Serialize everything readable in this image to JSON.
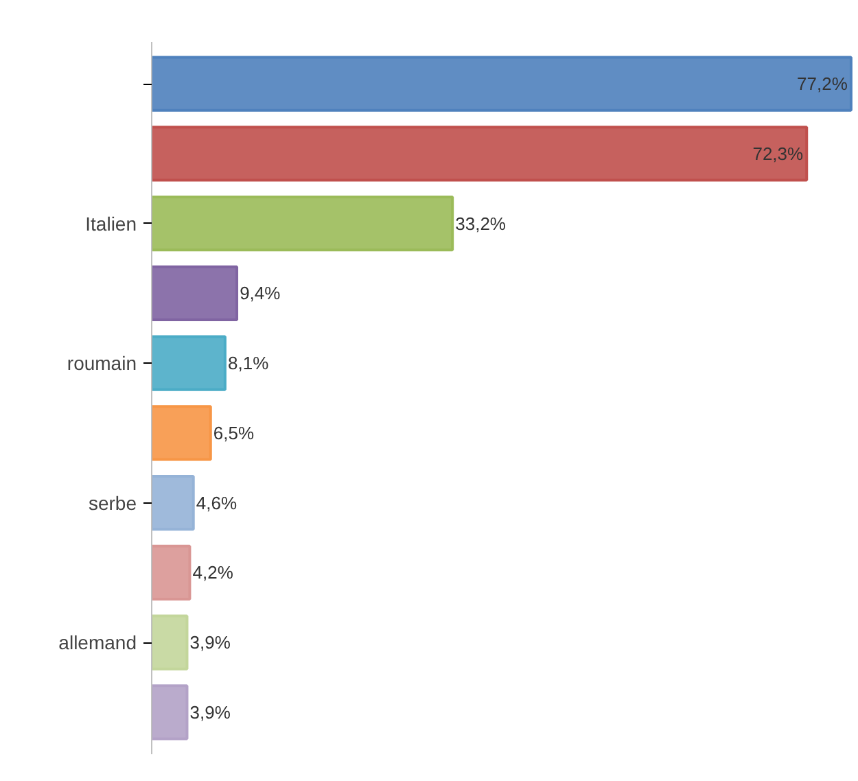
{
  "chart_data": {
    "type": "bar",
    "orientation": "horizontal",
    "categories": [
      null,
      null,
      "Italien",
      null,
      "roumain",
      null,
      "serbe",
      null,
      "allemand",
      null
    ],
    "values": [
      77.2,
      72.3,
      33.2,
      9.4,
      8.1,
      6.5,
      4.6,
      4.2,
      3.9,
      3.9
    ],
    "colors": [
      "#4f81bd",
      "#c0504d",
      "#9bbb59",
      "#8064a2",
      "#4bacc6",
      "#f79646",
      "#95b3d7",
      "#d99694",
      "#c3d69b",
      "#b3a2c7"
    ],
    "value_labels": [
      "77,2%",
      "72,3%",
      "33,2%",
      "9,4%",
      "8,1%",
      "6,5%",
      "4,6%",
      "4,2%",
      "3,9%",
      "3,9%"
    ],
    "grid": false,
    "tick_labels": "y"
  }
}
